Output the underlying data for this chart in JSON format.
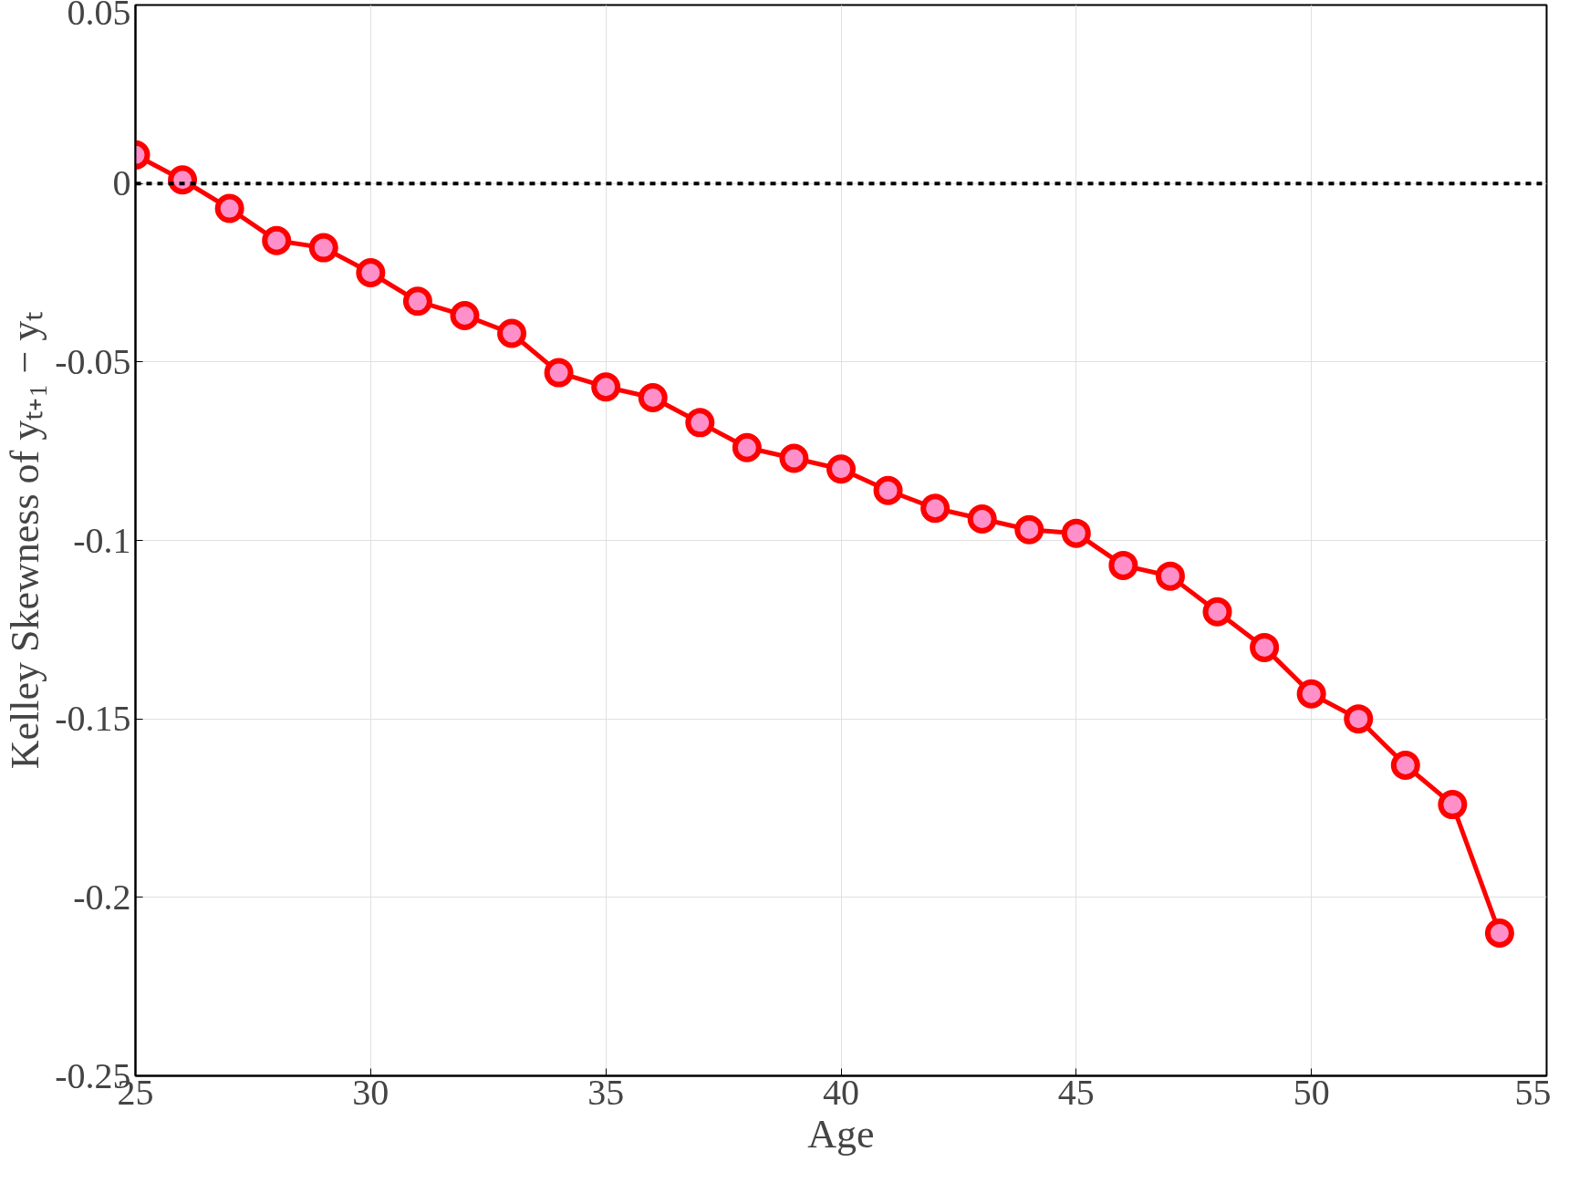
{
  "chart_data": {
    "type": "line",
    "xlabel": "Age",
    "ylabel": "Kelley Skewness of yₜ₊₁ − yₜ",
    "x": [
      25,
      26,
      27,
      28,
      29,
      30,
      31,
      32,
      33,
      34,
      35,
      36,
      37,
      38,
      39,
      40,
      41,
      42,
      43,
      44,
      45,
      46,
      47,
      48,
      49,
      50,
      51,
      52,
      53,
      54
    ],
    "series": [
      {
        "color": "#ff0000",
        "values": [
          0.008,
          0.001,
          -0.007,
          -0.016,
          -0.018,
          -0.025,
          -0.033,
          -0.037,
          -0.042,
          -0.053,
          -0.057,
          -0.06,
          -0.067,
          -0.074,
          -0.077,
          -0.08,
          -0.086,
          -0.091,
          -0.094,
          -0.097,
          -0.098,
          -0.107,
          -0.11,
          -0.12,
          -0.13,
          -0.143,
          -0.15,
          -0.163,
          -0.174,
          -0.21
        ]
      }
    ],
    "marker": "circle",
    "line_style": "solid",
    "xlim": [
      25,
      55
    ],
    "xticks": [
      25,
      30,
      35,
      40,
      45,
      50,
      55
    ],
    "ylim": [
      -0.25,
      0.05
    ],
    "yticks": [
      {
        "value": -0.25,
        "label": "-0.25"
      },
      {
        "value": -0.2,
        "label": "-0.2"
      },
      {
        "value": -0.15,
        "label": "-0.15"
      },
      {
        "value": -0.1,
        "label": "-0.1"
      },
      {
        "value": -0.05,
        "label": "-0.05"
      },
      0,
      0.05
    ],
    "grid": true,
    "ref_lines": [
      {
        "axis": "y",
        "value": 0,
        "color": "#000000",
        "line_style": "dashed"
      }
    ]
  }
}
